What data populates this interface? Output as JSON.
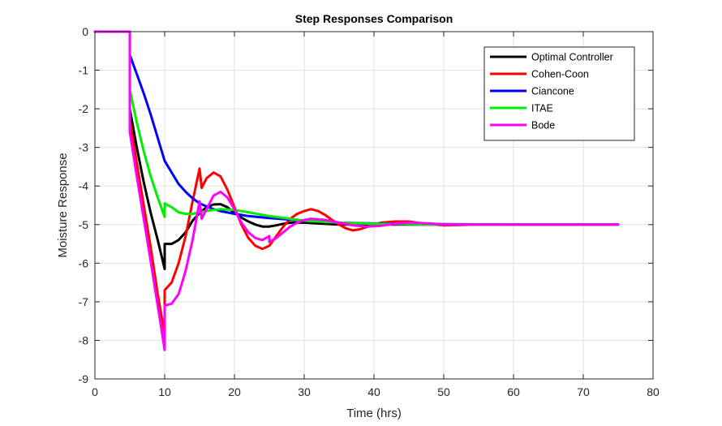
{
  "chart_data": {
    "type": "line",
    "title": "Step Responses Comparison",
    "xlabel": "Time (hrs)",
    "ylabel": "Moisture Response",
    "xlim": [
      0,
      80
    ],
    "ylim": [
      -9,
      0
    ],
    "xticks": [
      0,
      10,
      20,
      30,
      40,
      50,
      60,
      70,
      80
    ],
    "yticks": [
      0,
      -1,
      -2,
      -3,
      -4,
      -5,
      -6,
      -7,
      -8,
      -9
    ],
    "grid": true,
    "legend_position": "top-right",
    "series": [
      {
        "name": "Optimal Controller",
        "color": "#000000",
        "points": [
          [
            0,
            0
          ],
          [
            5,
            0
          ],
          [
            5,
            -2
          ],
          [
            6,
            -3
          ],
          [
            7,
            -3.9
          ],
          [
            8,
            -4.7
          ],
          [
            9,
            -5.4
          ],
          [
            10,
            -6.15
          ],
          [
            10,
            -5.5
          ],
          [
            11,
            -5.5
          ],
          [
            12,
            -5.4
          ],
          [
            13,
            -5.2
          ],
          [
            14,
            -4.9
          ],
          [
            15,
            -4.7
          ],
          [
            16,
            -4.55
          ],
          [
            17,
            -4.48
          ],
          [
            18,
            -4.47
          ],
          [
            19,
            -4.55
          ],
          [
            20,
            -4.7
          ],
          [
            21,
            -4.82
          ],
          [
            22,
            -4.92
          ],
          [
            23,
            -5.0
          ],
          [
            24,
            -5.05
          ],
          [
            25,
            -5.05
          ],
          [
            26,
            -5.02
          ],
          [
            27,
            -4.98
          ],
          [
            28,
            -4.95
          ],
          [
            30,
            -4.95
          ],
          [
            32,
            -4.97
          ],
          [
            35,
            -5.0
          ],
          [
            40,
            -5.0
          ],
          [
            50,
            -5.0
          ],
          [
            60,
            -5.0
          ],
          [
            75,
            -5.0
          ]
        ]
      },
      {
        "name": "Cohen-Coon",
        "color": "#ff0000",
        "points": [
          [
            0,
            0
          ],
          [
            5,
            0
          ],
          [
            5,
            -2.3
          ],
          [
            6,
            -3.4
          ],
          [
            7,
            -4.5
          ],
          [
            8,
            -5.6
          ],
          [
            9,
            -6.8
          ],
          [
            10,
            -7.85
          ],
          [
            10,
            -6.7
          ],
          [
            11,
            -6.5
          ],
          [
            12,
            -6.0
          ],
          [
            13,
            -5.3
          ],
          [
            14,
            -4.4
          ],
          [
            15,
            -3.55
          ],
          [
            15.3,
            -4.05
          ],
          [
            16,
            -3.8
          ],
          [
            17,
            -3.65
          ],
          [
            18,
            -3.75
          ],
          [
            19,
            -4.1
          ],
          [
            20,
            -4.55
          ],
          [
            21,
            -5.0
          ],
          [
            22,
            -5.35
          ],
          [
            23,
            -5.55
          ],
          [
            24,
            -5.63
          ],
          [
            25,
            -5.55
          ],
          [
            26,
            -5.3
          ],
          [
            27,
            -5.05
          ],
          [
            28,
            -4.85
          ],
          [
            29,
            -4.72
          ],
          [
            30,
            -4.65
          ],
          [
            31,
            -4.6
          ],
          [
            32,
            -4.65
          ],
          [
            33,
            -4.75
          ],
          [
            34,
            -4.88
          ],
          [
            35,
            -5.0
          ],
          [
            36,
            -5.1
          ],
          [
            37,
            -5.15
          ],
          [
            38,
            -5.12
          ],
          [
            39,
            -5.06
          ],
          [
            40,
            -5.0
          ],
          [
            41,
            -4.95
          ],
          [
            43,
            -4.92
          ],
          [
            45,
            -4.92
          ],
          [
            47,
            -4.97
          ],
          [
            50,
            -5.02
          ],
          [
            55,
            -5.0
          ],
          [
            60,
            -5.0
          ],
          [
            75,
            -5.0
          ]
        ]
      },
      {
        "name": "Ciancone",
        "color": "#0000ff",
        "points": [
          [
            0,
            0
          ],
          [
            5,
            0
          ],
          [
            5,
            -0.6
          ],
          [
            6,
            -1.1
          ],
          [
            7,
            -1.6
          ],
          [
            8,
            -2.15
          ],
          [
            9,
            -2.75
          ],
          [
            10,
            -3.35
          ],
          [
            11,
            -3.65
          ],
          [
            12,
            -3.95
          ],
          [
            13,
            -4.15
          ],
          [
            14,
            -4.32
          ],
          [
            15,
            -4.45
          ],
          [
            16,
            -4.53
          ],
          [
            17,
            -4.6
          ],
          [
            18,
            -4.65
          ],
          [
            20,
            -4.72
          ],
          [
            22,
            -4.78
          ],
          [
            25,
            -4.83
          ],
          [
            28,
            -4.87
          ],
          [
            30,
            -4.9
          ],
          [
            35,
            -4.95
          ],
          [
            40,
            -4.97
          ],
          [
            50,
            -4.99
          ],
          [
            60,
            -5.0
          ],
          [
            75,
            -5.0
          ]
        ]
      },
      {
        "name": "ITAE",
        "color": "#00ee00",
        "points": [
          [
            0,
            0
          ],
          [
            5,
            0
          ],
          [
            5,
            -1.5
          ],
          [
            6,
            -2.35
          ],
          [
            7,
            -3.1
          ],
          [
            8,
            -3.75
          ],
          [
            9,
            -4.3
          ],
          [
            10,
            -4.8
          ],
          [
            10,
            -4.45
          ],
          [
            11,
            -4.55
          ],
          [
            12,
            -4.68
          ],
          [
            13,
            -4.72
          ],
          [
            14,
            -4.72
          ],
          [
            15,
            -4.68
          ],
          [
            16,
            -4.65
          ],
          [
            17,
            -4.62
          ],
          [
            18,
            -4.6
          ],
          [
            20,
            -4.62
          ],
          [
            22,
            -4.68
          ],
          [
            25,
            -4.78
          ],
          [
            28,
            -4.85
          ],
          [
            30,
            -4.9
          ],
          [
            35,
            -4.95
          ],
          [
            40,
            -4.98
          ],
          [
            50,
            -5.0
          ],
          [
            60,
            -5.0
          ],
          [
            75,
            -5.0
          ]
        ]
      },
      {
        "name": "Bode",
        "color": "#ff00ff",
        "points": [
          [
            0,
            0
          ],
          [
            5,
            0
          ],
          [
            5,
            -2.6
          ],
          [
            6,
            -3.75
          ],
          [
            7,
            -4.85
          ],
          [
            8,
            -5.95
          ],
          [
            9,
            -7.1
          ],
          [
            10,
            -8.25
          ],
          [
            10,
            -7.1
          ],
          [
            11,
            -7.05
          ],
          [
            12,
            -6.8
          ],
          [
            13,
            -6.2
          ],
          [
            14,
            -5.4
          ],
          [
            15,
            -4.4
          ],
          [
            15.3,
            -4.85
          ],
          [
            16,
            -4.6
          ],
          [
            17,
            -4.25
          ],
          [
            18,
            -4.15
          ],
          [
            19,
            -4.3
          ],
          [
            20,
            -4.6
          ],
          [
            21,
            -4.95
          ],
          [
            22,
            -5.2
          ],
          [
            23,
            -5.35
          ],
          [
            24,
            -5.4
          ],
          [
            25,
            -5.3
          ],
          [
            25,
            -5.45
          ],
          [
            26,
            -5.35
          ],
          [
            27,
            -5.2
          ],
          [
            28,
            -5.05
          ],
          [
            29,
            -4.95
          ],
          [
            30,
            -4.88
          ],
          [
            31,
            -4.85
          ],
          [
            33,
            -4.88
          ],
          [
            35,
            -4.95
          ],
          [
            37,
            -5.02
          ],
          [
            39,
            -5.05
          ],
          [
            41,
            -5.03
          ],
          [
            43,
            -4.98
          ],
          [
            45,
            -4.95
          ],
          [
            48,
            -4.97
          ],
          [
            50,
            -5.0
          ],
          [
            55,
            -5.0
          ],
          [
            60,
            -5.0
          ],
          [
            75,
            -5.0
          ]
        ]
      }
    ]
  }
}
